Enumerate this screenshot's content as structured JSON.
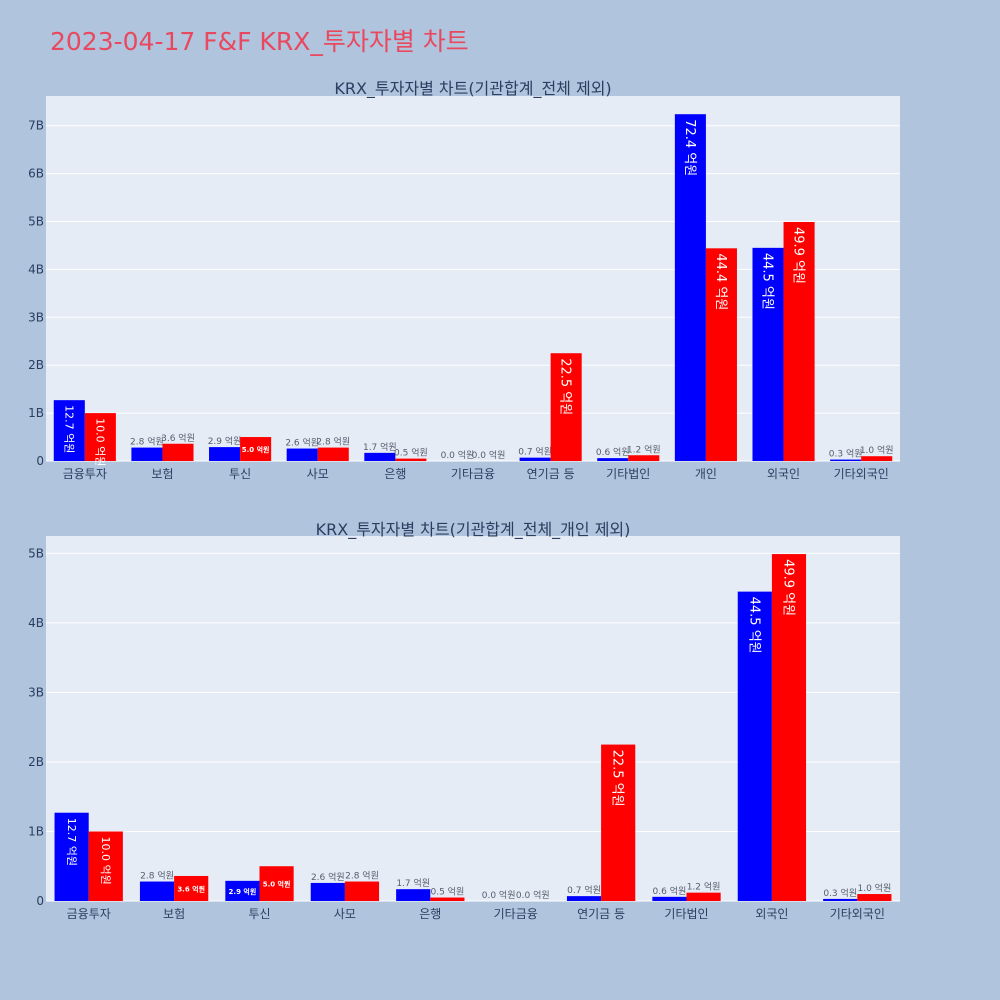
{
  "page_title": "2023-04-17 F&F KRX_투자자별 차트",
  "colors": {
    "background": "#b0c4de",
    "plot_bg": "#e5ecf6",
    "series_a": "#0000ff",
    "series_b": "#ff0000",
    "title": "#e8495f"
  },
  "chart_data": [
    {
      "type": "bar",
      "title": "KRX_투자자별 차트(기관합계_전체 제외)",
      "categories": [
        "금융투자",
        "보험",
        "투신",
        "사모",
        "은행",
        "기타금융",
        "연기금 등",
        "기타법인",
        "개인",
        "외국인",
        "기타외국인"
      ],
      "series": [
        {
          "color": "#0000ff",
          "values": [
            1.27,
            0.28,
            0.29,
            0.26,
            0.17,
            0.0,
            0.07,
            0.06,
            7.24,
            4.45,
            0.03
          ],
          "labels": [
            "12.7 억원",
            "2.8 억원",
            "2.9 억원",
            "2.6 억원",
            "1.7 억원",
            "0.0 억원",
            "0.7 억원",
            "0.6 억원",
            "72.4 억원",
            "44.5 억원",
            "0.3 억원"
          ]
        },
        {
          "color": "#ff0000",
          "values": [
            1.0,
            0.36,
            0.5,
            0.28,
            0.05,
            0.0,
            2.25,
            0.12,
            4.44,
            4.99,
            0.1
          ],
          "labels": [
            "10.0 억원",
            "3.6 억원",
            "5.0 억원",
            "2.8 억원",
            "0.5 억원",
            "0.0 억원",
            "22.5 억원",
            "1.2 억원",
            "44.4 억원",
            "49.9 억원",
            "1.0 억원"
          ]
        }
      ],
      "yticks": [
        "0",
        "1B",
        "2B",
        "3B",
        "4B",
        "5B",
        "6B",
        "7B"
      ],
      "ylim": [
        0,
        7.62
      ],
      "grid": true
    },
    {
      "type": "bar",
      "title": "KRX_투자자별 차트(기관합계_전체_개인 제외)",
      "categories": [
        "금융투자",
        "보험",
        "투신",
        "사모",
        "은행",
        "기타금융",
        "연기금 등",
        "기타법인",
        "외국인",
        "기타외국인"
      ],
      "series": [
        {
          "color": "#0000ff",
          "values": [
            1.27,
            0.28,
            0.29,
            0.26,
            0.17,
            0.0,
            0.07,
            0.06,
            4.45,
            0.03
          ],
          "labels": [
            "12.7 억원",
            "2.8 억원",
            "2.9 억원",
            "2.6 억원",
            "1.7 억원",
            "0.0 억원",
            "0.7 억원",
            "0.6 억원",
            "44.5 억원",
            "0.3 억원"
          ]
        },
        {
          "color": "#ff0000",
          "values": [
            1.0,
            0.36,
            0.5,
            0.28,
            0.05,
            0.0,
            2.25,
            0.12,
            4.99,
            0.1
          ],
          "labels": [
            "10.0 억원",
            "3.6 억원",
            "5.0 억원",
            "2.8 억원",
            "0.5 억원",
            "0.0 억원",
            "22.5 억원",
            "1.2 억원",
            "49.9 억원",
            "1.0 억원"
          ]
        }
      ],
      "yticks": [
        "0",
        "1B",
        "2B",
        "3B",
        "4B",
        "5B"
      ],
      "ylim": [
        0,
        5.25
      ],
      "grid": true
    }
  ]
}
